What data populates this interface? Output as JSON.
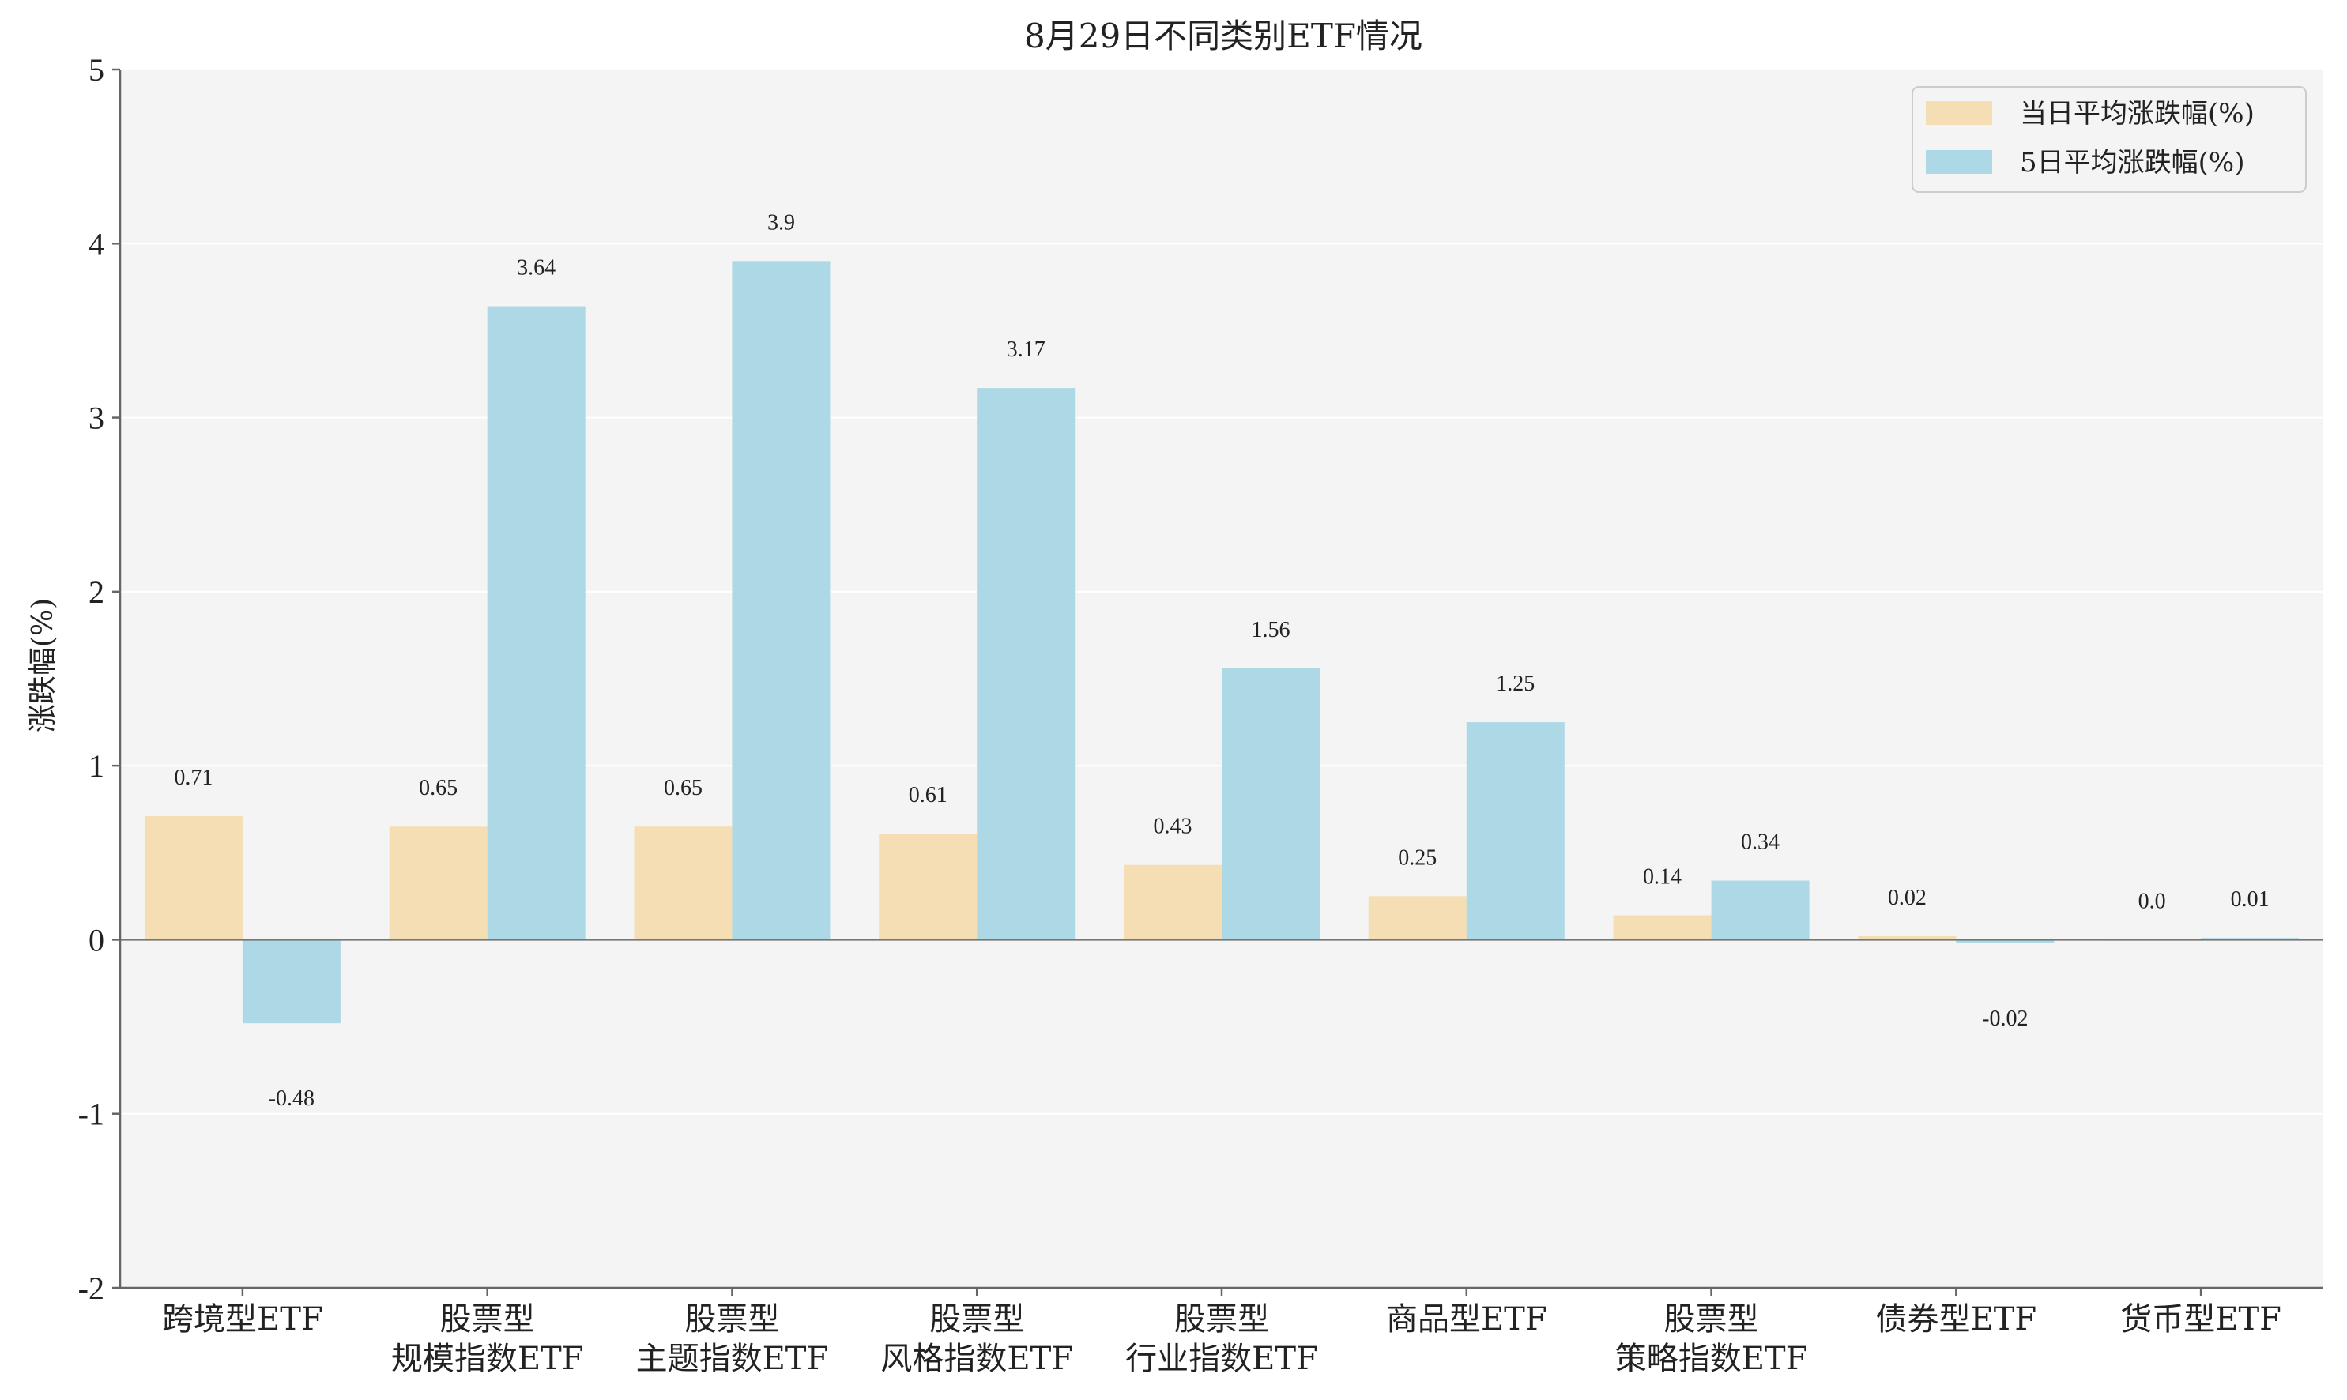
{
  "colors": {
    "plot_background": "#f4f4f4",
    "grid": "#ffffff",
    "axis": "#666666",
    "zero_line": "#777777"
  },
  "chart_data": {
    "type": "bar",
    "title": "8月29日不同类别ETF情况",
    "xlabel": "",
    "ylabel": "涨跌幅(%)",
    "ylim": [
      -2,
      5
    ],
    "yticks": [
      -2,
      -1,
      0,
      1,
      2,
      3,
      4,
      5
    ],
    "grid": true,
    "legend_position": "top-right",
    "categories": [
      [
        "跨境型ETF"
      ],
      [
        "股票型",
        "规模指数ETF"
      ],
      [
        "股票型",
        "主题指数ETF"
      ],
      [
        "股票型",
        "风格指数ETF"
      ],
      [
        "股票型",
        "行业指数ETF"
      ],
      [
        "商品型ETF"
      ],
      [
        "股票型",
        "策略指数ETF"
      ],
      [
        "债券型ETF"
      ],
      [
        "货币型ETF"
      ]
    ],
    "series": [
      {
        "name": "当日平均涨跌幅(%)",
        "color": "#f5deb3",
        "values": [
          0.71,
          0.65,
          0.65,
          0.61,
          0.43,
          0.25,
          0.14,
          0.02,
          0.0
        ],
        "labels": [
          "0.71",
          "0.65",
          "0.65",
          "0.61",
          "0.43",
          "0.25",
          "0.14",
          "0.02",
          "0.0"
        ]
      },
      {
        "name": "5日平均涨跌幅(%)",
        "color": "#add8e6",
        "values": [
          -0.48,
          3.64,
          3.9,
          3.17,
          1.56,
          1.25,
          0.34,
          -0.02,
          0.01
        ],
        "labels": [
          "-0.48",
          "3.64",
          "3.9",
          "3.17",
          "1.56",
          "1.25",
          "0.34",
          "-0.02",
          "0.01"
        ]
      }
    ]
  }
}
